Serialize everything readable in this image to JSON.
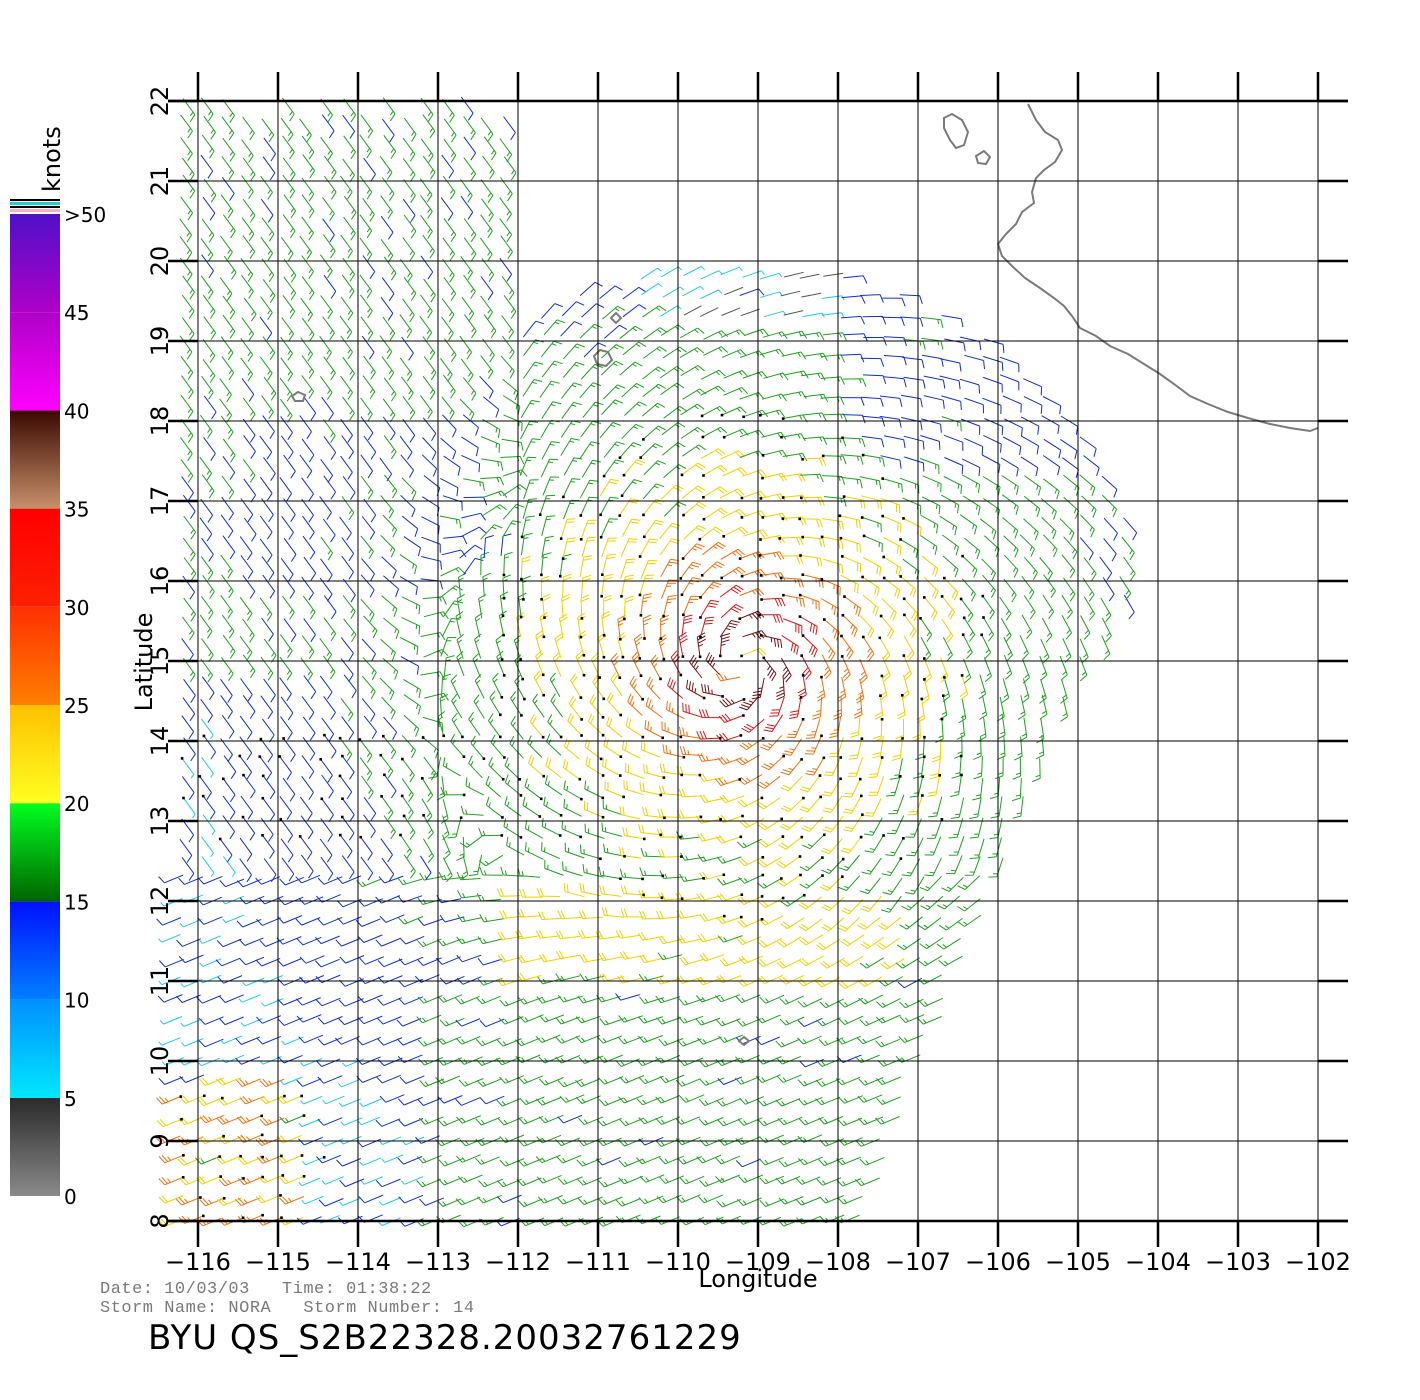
{
  "figure": {
    "xlabel": "Longitude",
    "ylabel": "Latitude",
    "x_ticks": [
      "−116",
      "−115",
      "−114",
      "−113",
      "−112",
      "−111",
      "−110",
      "−109",
      "−108",
      "−107",
      "−106",
      "−105",
      "−104",
      "−103",
      "−102"
    ],
    "y_ticks": [
      "8",
      "9",
      "10",
      "11",
      "12",
      "13",
      "14",
      "15",
      "16",
      "17",
      "18",
      "19",
      "20",
      "21",
      "22"
    ],
    "lon_range": [
      -116,
      -102
    ],
    "lat_range": [
      8,
      22
    ]
  },
  "colorbar": {
    "unit_label": "knots",
    "tick_labels": [
      "0",
      "5",
      "10",
      "15",
      "20",
      "25",
      "30",
      "35",
      "40",
      "45",
      ">50"
    ],
    "segments": [
      {
        "from": 0,
        "to": 5,
        "colors": [
          "#8a8a8a",
          "#2a2a2a"
        ]
      },
      {
        "from": 5,
        "to": 10,
        "colors": [
          "#00e8ff",
          "#0090ff"
        ]
      },
      {
        "from": 10,
        "to": 15,
        "colors": [
          "#0080ff",
          "#0010ff"
        ]
      },
      {
        "from": 15,
        "to": 20,
        "colors": [
          "#006400",
          "#00ff20"
        ]
      },
      {
        "from": 20,
        "to": 25,
        "colors": [
          "#ffff20",
          "#ffc000"
        ]
      },
      {
        "from": 25,
        "to": 30,
        "colors": [
          "#ff8000",
          "#ff3000"
        ]
      },
      {
        "from": 30,
        "to": 35,
        "colors": [
          "#ff2000",
          "#ff0000"
        ]
      },
      {
        "from": 35,
        "to": 40,
        "colors": [
          "#c8906a",
          "#3a0800"
        ]
      },
      {
        "from": 40,
        "to": 45,
        "colors": [
          "#ff00ff",
          "#b000c8"
        ]
      },
      {
        "from": 45,
        "to": 50,
        "colors": [
          "#b000c8",
          "#5010c8"
        ]
      }
    ]
  },
  "storm": {
    "center_lon": -109.2,
    "center_lat": 14.95,
    "max_wind_knots": 42
  },
  "info": {
    "line1": "Date: 10/03/03   Time: 01:38:22",
    "line2": "Storm Name: NORA   Storm Number: 14",
    "title": "BYU QS_S2B22328.20032761229"
  },
  "colors": {
    "grid": "#000000",
    "coastline": "#7a7a7a"
  }
}
